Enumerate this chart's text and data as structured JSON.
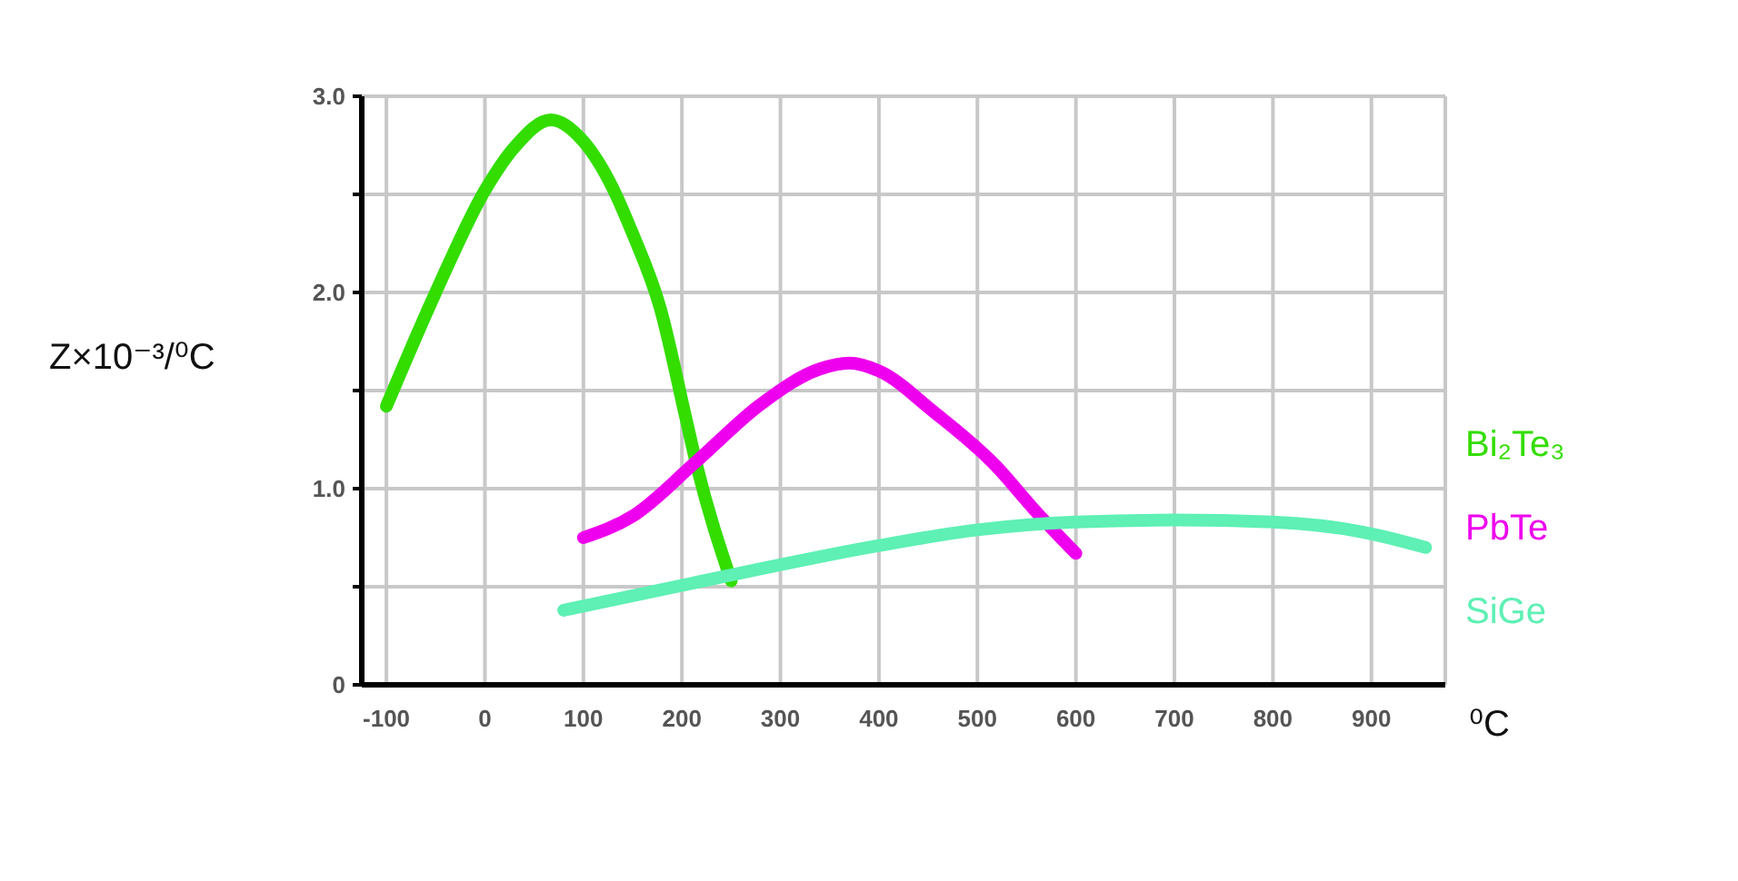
{
  "chart_data": {
    "type": "line",
    "ylabel": "Z×10⁻³/⁰C",
    "xlabel": "⁰C",
    "xlim": [
      -125,
      975
    ],
    "xticks": [
      -100,
      0,
      100,
      200,
      300,
      400,
      500,
      600,
      700,
      800,
      900
    ],
    "ylim": [
      0,
      3
    ],
    "yticks": [
      0,
      {
        "value": 0.5,
        "label": null
      },
      {
        "value": 1,
        "label": "1.0"
      },
      {
        "value": 1.5,
        "label": null
      },
      {
        "value": 2,
        "label": "2.0"
      },
      {
        "value": 2.5,
        "label": null
      },
      {
        "value": 3,
        "label": "3.0"
      }
    ],
    "grid": true,
    "legend": "right",
    "marker": "none",
    "series": [
      {
        "name": "Bi₂Te₃",
        "color": "#33dd00",
        "x": [
          -100,
          -50,
          0,
          30,
          67,
          100,
          130,
          150,
          178,
          204,
          215,
          250
        ],
        "values": [
          1.42,
          2.0,
          2.52,
          2.74,
          2.88,
          2.77,
          2.53,
          2.3,
          1.92,
          1.36,
          1.12,
          0.53
        ]
      },
      {
        "name": "PbTe",
        "color": "#ee00ee",
        "x": [
          100,
          150,
          215,
          280,
          340,
          370,
          400,
          456,
          518,
          560,
          600
        ],
        "values": [
          0.75,
          0.86,
          1.14,
          1.43,
          1.61,
          1.64,
          1.6,
          1.39,
          1.12,
          0.88,
          0.67
        ]
      },
      {
        "name": "SiGe",
        "color": "#5ef0b4",
        "x": [
          80,
          250,
          400,
          500,
          600,
          700,
          800,
          890,
          955
        ],
        "values": [
          0.38,
          0.56,
          0.71,
          0.79,
          0.83,
          0.84,
          0.83,
          0.78,
          0.7
        ]
      }
    ]
  }
}
